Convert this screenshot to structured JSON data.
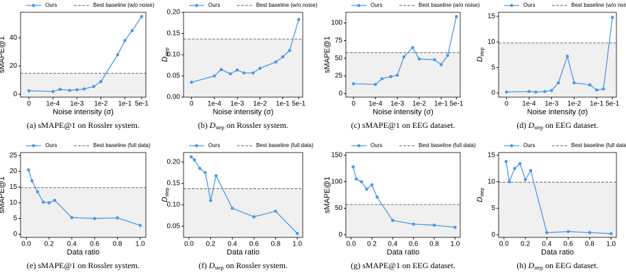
{
  "chart_data": [
    {
      "type": "line",
      "xscale": "symlog",
      "linthresh": 0.0001,
      "xlabel": "Noise intensity (σ)",
      "ylabel": "sMAPE@1",
      "caption_label": "(a)",
      "caption_metric": "sMAPE@1",
      "caption_text": "on Rossler system.",
      "x": [
        0,
        0.0001,
        0.0002,
        0.0005,
        0.001,
        0.002,
        0.005,
        0.01,
        0.05,
        0.1,
        0.2,
        0.5
      ],
      "series": [
        {
          "name": "Ours",
          "color": "#4c98e6",
          "values": [
            2.5,
            2,
            3.5,
            2.8,
            3.2,
            3.8,
            5.5,
            9,
            28,
            38,
            45,
            55
          ]
        }
      ],
      "baseline": {
        "name": "Best baseline (w/o noise)",
        "color": "#808080",
        "value": 14.8
      },
      "xlim": [
        -3.5e-05,
        0.75
      ],
      "xticks": [
        0,
        {
          "value": 0.0001,
          "label": "1e-4"
        },
        {
          "value": 0.001,
          "label": "1e-3"
        },
        {
          "value": 0.01,
          "label": "1e-2"
        },
        {
          "value": 0.1,
          "label": "1e-1"
        },
        {
          "value": 0.5,
          "label": "5e-1"
        }
      ],
      "ylim": [
        -2,
        58
      ],
      "yticks": [
        0,
        20,
        40
      ],
      "legend": "top"
    },
    {
      "type": "line",
      "xscale": "symlog",
      "linthresh": 0.0001,
      "xlabel": "Noise intensity (σ)",
      "ylabel": "D",
      "ylabel_sub": "step",
      "caption_label": "(b)",
      "caption_metric": "D",
      "caption_metric_sub": "step",
      "caption_text": "on Rossler system.",
      "x": [
        0,
        0.0001,
        0.0002,
        0.0005,
        0.001,
        0.002,
        0.005,
        0.01,
        0.05,
        0.1,
        0.2,
        0.5
      ],
      "series": [
        {
          "name": "Ours",
          "color": "#4c98e6",
          "values": [
            0.035,
            0.05,
            0.065,
            0.055,
            0.064,
            0.057,
            0.057,
            0.068,
            0.083,
            0.095,
            0.11,
            0.183
          ]
        }
      ],
      "baseline": {
        "name": "Best baseline (w/o noise)",
        "color": "#808080",
        "value": 0.137
      },
      "xlim": [
        -3.5e-05,
        0.75
      ],
      "xticks": [
        0,
        {
          "value": 0.0001,
          "label": "1e-4"
        },
        {
          "value": 0.001,
          "label": "1e-3"
        },
        {
          "value": 0.01,
          "label": "1e-2"
        },
        {
          "value": 0.1,
          "label": "1e-1"
        },
        {
          "value": 0.5,
          "label": "5e-1"
        }
      ],
      "ylim": [
        0,
        0.2
      ],
      "yticks": [
        {
          "value": 0,
          "label": "0.00"
        },
        {
          "value": 0.05,
          "label": "0.05"
        },
        {
          "value": 0.1,
          "label": "0.10"
        },
        {
          "value": 0.15,
          "label": "0.15"
        },
        {
          "value": 0.2,
          "label": "0.20"
        }
      ],
      "legend": "top"
    },
    {
      "type": "line",
      "xscale": "symlog",
      "linthresh": 0.0001,
      "xlabel": "Noise intensity (σ)",
      "ylabel": "sMAPE@1",
      "caption_label": "(c)",
      "caption_metric": "sMAPE@1",
      "caption_text": "on EEG dataset.",
      "x": [
        0,
        0.0001,
        0.0002,
        0.0005,
        0.001,
        0.002,
        0.005,
        0.01,
        0.05,
        0.1,
        0.2,
        0.5
      ],
      "series": [
        {
          "name": "Ours",
          "color": "#4c98e6",
          "values": [
            14,
            13,
            21,
            24,
            26,
            52,
            65,
            49,
            48,
            41,
            54,
            109
          ]
        }
      ],
      "baseline": {
        "name": "Best baseline (w/o noise)",
        "color": "#808080",
        "value": 58
      },
      "xlim": [
        -3.5e-05,
        0.75
      ],
      "xticks": [
        0,
        {
          "value": 0.0001,
          "label": "1e-4"
        },
        {
          "value": 0.001,
          "label": "1e-3"
        },
        {
          "value": 0.01,
          "label": "1e-2"
        },
        {
          "value": 0.1,
          "label": "1e-1"
        },
        {
          "value": 0.5,
          "label": "5e-1"
        }
      ],
      "ylim": [
        -5,
        115
      ],
      "yticks": [
        0,
        25,
        50,
        75,
        100
      ],
      "legend": "top"
    },
    {
      "type": "line",
      "xscale": "symlog",
      "linthresh": 0.0001,
      "xlabel": "Noise intensity (σ)",
      "ylabel": "D",
      "ylabel_sub": "step",
      "caption_label": "(d)",
      "caption_metric": "D",
      "caption_metric_sub": "step",
      "caption_text": "on EEG dataset.",
      "x": [
        0,
        0.0001,
        0.0002,
        0.0005,
        0.001,
        0.002,
        0.005,
        0.01,
        0.05,
        0.1,
        0.2,
        0.5
      ],
      "series": [
        {
          "name": "Ours",
          "color": "#4c98e6",
          "values": [
            0.2,
            0.3,
            0.2,
            0.3,
            0.5,
            2.0,
            7.2,
            2.0,
            1.6,
            0.6,
            0.8,
            14.8
          ]
        }
      ],
      "baseline": {
        "name": "Best baseline (w/o noise)",
        "color": "#808080",
        "value": 9.8
      },
      "xlim": [
        -3.5e-05,
        0.75
      ],
      "xticks": [
        0,
        {
          "value": 0.0001,
          "label": "1e-4"
        },
        {
          "value": 0.001,
          "label": "1e-3"
        },
        {
          "value": 0.01,
          "label": "1e-2"
        },
        {
          "value": 0.1,
          "label": "1e-1"
        },
        {
          "value": 0.5,
          "label": "5e-1"
        }
      ],
      "ylim": [
        -0.8,
        15.8
      ],
      "yticks": [
        0,
        5,
        10,
        15
      ],
      "legend": "top"
    },
    {
      "type": "line",
      "xlabel": "Data ratio",
      "ylabel": "sMAPE@1",
      "caption_label": "(e)",
      "caption_metric": "sMAPE@1",
      "caption_text": "on Rossler system.",
      "x": [
        0.02,
        0.05,
        0.1,
        0.15,
        0.2,
        0.25,
        0.4,
        0.6,
        0.8,
        1.0
      ],
      "series": [
        {
          "name": "Ours",
          "color": "#4c98e6",
          "values": [
            20.5,
            17,
            13.5,
            10.2,
            10,
            10.8,
            5.3,
            5,
            5.2,
            2.8
          ]
        }
      ],
      "baseline": {
        "name": "Best baseline (full data)",
        "color": "#808080",
        "value": 14.8
      },
      "xlim": [
        -0.05,
        1.05
      ],
      "xticks": [
        {
          "value": 0,
          "label": "0.0"
        },
        {
          "value": 0.2,
          "label": "0.2"
        },
        {
          "value": 0.4,
          "label": "0.4"
        },
        {
          "value": 0.6,
          "label": "0.6"
        },
        {
          "value": 0.8,
          "label": "0.8"
        },
        {
          "value": 1,
          "label": "1.0"
        }
      ],
      "ylim": [
        -1,
        26
      ],
      "yticks": [
        0,
        5,
        10,
        15,
        20,
        25
      ],
      "legend": "top"
    },
    {
      "type": "line",
      "xlabel": "Data ratio",
      "ylabel": "D",
      "ylabel_sub": "step",
      "caption_label": "(f)",
      "caption_metric": "D",
      "caption_metric_sub": "step",
      "caption_text": "on Rossler system.",
      "x": [
        0.02,
        0.05,
        0.1,
        0.15,
        0.2,
        0.25,
        0.4,
        0.6,
        0.8,
        1.0
      ],
      "series": [
        {
          "name": "Ours",
          "color": "#4c98e6",
          "values": [
            0.212,
            0.205,
            0.185,
            0.175,
            0.11,
            0.168,
            0.092,
            0.072,
            0.085,
            0.033
          ]
        }
      ],
      "baseline": {
        "name": "Best baseline (full data)",
        "color": "#808080",
        "value": 0.138
      },
      "xlim": [
        -0.05,
        1.05
      ],
      "xticks": [
        {
          "value": 0,
          "label": "0.0"
        },
        {
          "value": 0.2,
          "label": "0.2"
        },
        {
          "value": 0.4,
          "label": "0.4"
        },
        {
          "value": 0.6,
          "label": "0.6"
        },
        {
          "value": 0.8,
          "label": "0.8"
        },
        {
          "value": 1,
          "label": "1.0"
        }
      ],
      "ylim": [
        0.024,
        0.222
      ],
      "yticks": [
        {
          "value": 0.05,
          "label": "0.05"
        },
        {
          "value": 0.1,
          "label": "0.10"
        },
        {
          "value": 0.15,
          "label": "0.15"
        },
        {
          "value": 0.2,
          "label": "0.20"
        }
      ],
      "legend": "top"
    },
    {
      "type": "line",
      "xlabel": "Data ratio",
      "ylabel": "sMAPE@1",
      "caption_label": "(g)",
      "caption_metric": "sMAPE@1",
      "caption_text": "on EEG dataset.",
      "x": [
        0.02,
        0.05,
        0.1,
        0.15,
        0.2,
        0.25,
        0.4,
        0.6,
        0.8,
        1.0
      ],
      "series": [
        {
          "name": "Ours",
          "color": "#4c98e6",
          "values": [
            128,
            105,
            100,
            86,
            94,
            71,
            27,
            20,
            18,
            14
          ]
        }
      ],
      "baseline": {
        "name": "Best baseline (full data)",
        "color": "#808080",
        "value": 57
      },
      "xlim": [
        -0.05,
        1.05
      ],
      "xticks": [
        {
          "value": 0,
          "label": "0.0"
        },
        {
          "value": 0.2,
          "label": "0.2"
        },
        {
          "value": 0.4,
          "label": "0.4"
        },
        {
          "value": 0.6,
          "label": "0.6"
        },
        {
          "value": 0.8,
          "label": "0.8"
        },
        {
          "value": 1,
          "label": "1.0"
        }
      ],
      "ylim": [
        -5,
        155
      ],
      "yticks": [
        0,
        50,
        100,
        150
      ],
      "legend": "top"
    },
    {
      "type": "line",
      "xlabel": "Data ratio",
      "ylabel": "D",
      "ylabel_sub": "step",
      "caption_label": "(h)",
      "caption_metric": "D",
      "caption_metric_sub": "step",
      "caption_text": "on EEG dataset.",
      "x": [
        0.02,
        0.05,
        0.1,
        0.15,
        0.2,
        0.25,
        0.4,
        0.6,
        0.8,
        1.0
      ],
      "series": [
        {
          "name": "Ours",
          "color": "#4c98e6",
          "values": [
            13.8,
            10,
            12.5,
            13.4,
            10.4,
            12.1,
            0.4,
            0.6,
            0.4,
            0.2
          ]
        }
      ],
      "baseline": {
        "name": "Best baseline (full data)",
        "color": "#808080",
        "value": 9.9
      },
      "xlim": [
        -0.05,
        1.05
      ],
      "xticks": [
        {
          "value": 0,
          "label": "0.0"
        },
        {
          "value": 0.2,
          "label": "0.2"
        },
        {
          "value": 0.4,
          "label": "0.4"
        },
        {
          "value": 0.6,
          "label": "0.6"
        },
        {
          "value": 0.8,
          "label": "0.8"
        },
        {
          "value": 1,
          "label": "1.0"
        }
      ],
      "ylim": [
        -0.5,
        15.5
      ],
      "yticks": [
        0,
        5,
        10,
        15
      ],
      "legend": "top"
    }
  ]
}
